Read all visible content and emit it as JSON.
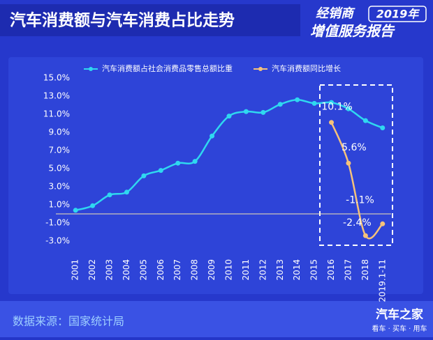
{
  "header": {
    "title": "汽车消费额与汽车消费占比走势",
    "badge_line1": "经销商",
    "badge_year": "2019年",
    "badge_line2": "增值服务报告"
  },
  "chart_data": {
    "type": "line",
    "categories": [
      "2001",
      "2002",
      "2003",
      "2004",
      "2005",
      "2006",
      "2007",
      "2008",
      "2009",
      "2010",
      "2011",
      "2012",
      "2013",
      "2014",
      "2015",
      "2016",
      "2017",
      "2018",
      "2019.1-11"
    ],
    "series": [
      {
        "name": "汽车消费额占社会消费品零售总额比重",
        "color": "#2fd8f0",
        "values": [
          0.4,
          0.9,
          2.1,
          2.4,
          4.2,
          4.8,
          5.6,
          5.8,
          8.6,
          10.8,
          11.3,
          11.2,
          12.1,
          12.6,
          12.2,
          12.3,
          11.6,
          10.3,
          9.5
        ]
      },
      {
        "name": "汽车消费额同比增长",
        "color": "#f5c27a",
        "values": [
          null,
          null,
          null,
          null,
          null,
          null,
          null,
          null,
          null,
          null,
          null,
          null,
          null,
          null,
          null,
          10.1,
          5.6,
          -2.4,
          -1.1
        ],
        "value_labels": [
          null,
          null,
          null,
          null,
          null,
          null,
          null,
          null,
          null,
          null,
          null,
          null,
          null,
          null,
          null,
          "10.1%",
          "5.6%",
          "-2.4%",
          "-1.1%"
        ]
      }
    ],
    "ylim": [
      -3,
      15
    ],
    "yticks": [
      {
        "value": 15,
        "label": "15.0%"
      },
      {
        "value": 13,
        "label": "13.0%"
      },
      {
        "value": 11,
        "label": "11.0%"
      },
      {
        "value": 9,
        "label": "9.0%"
      },
      {
        "value": 7,
        "label": "7.0%"
      },
      {
        "value": 5,
        "label": "5.0%"
      },
      {
        "value": 3,
        "label": "3.0%"
      },
      {
        "value": 1,
        "label": "1.0%"
      },
      {
        "value": -1,
        "label": "-1.0%"
      },
      {
        "value": -3,
        "label": "-3.0%"
      }
    ],
    "legend": "top"
  },
  "footer": {
    "source": "数据来源：国家统计局",
    "brand": "汽车之家",
    "slogan": "看车 · 买车 · 用车"
  }
}
